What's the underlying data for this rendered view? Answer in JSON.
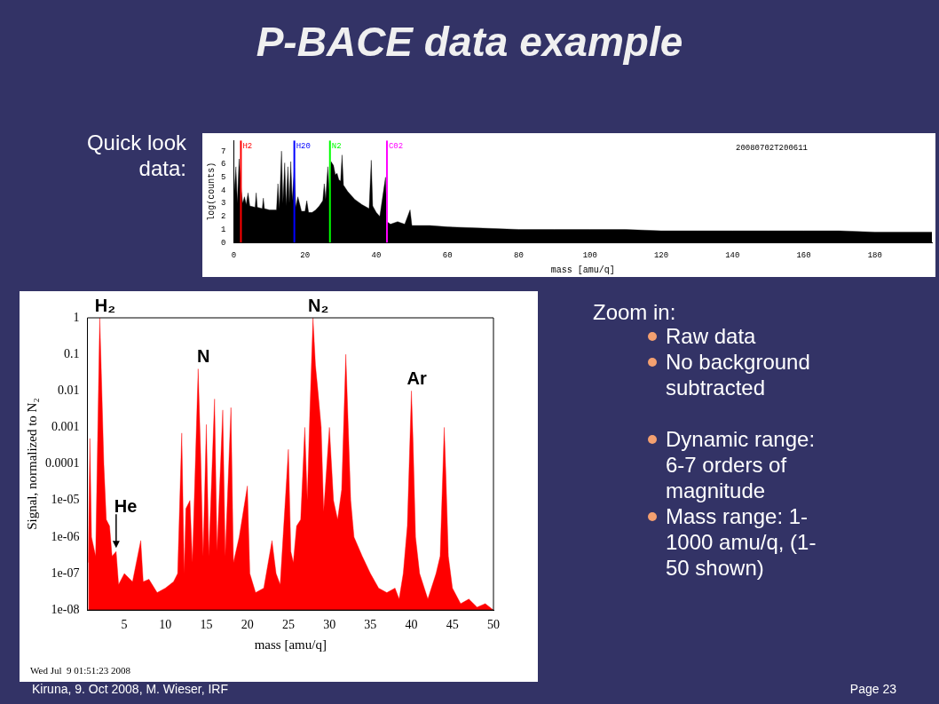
{
  "chart_data": [
    {
      "type": "area",
      "xlabel": "mass [amu/q]",
      "ylabel": "log(counts)",
      "color": "#000000",
      "xlim": [
        0,
        196
      ],
      "xticks": [
        0,
        20,
        40,
        60,
        80,
        100,
        120,
        140,
        160,
        180
      ],
      "ylim": [
        0,
        7.8
      ],
      "yticks": [
        0,
        1,
        2,
        3,
        4,
        5,
        6,
        7
      ],
      "marker": "none",
      "x": [
        0,
        0.6,
        1,
        1.5,
        2,
        2.5,
        3,
        3.5,
        4,
        4.5,
        6,
        6.3,
        6.6,
        8,
        8.3,
        8.6,
        10,
        12,
        12.4,
        12.8,
        13.4,
        13.8,
        14.3,
        14.7,
        15.2,
        15.6,
        16,
        16.4,
        17,
        17.4,
        18,
        19,
        20,
        20.5,
        21,
        22,
        23,
        24,
        25,
        25.4,
        25.8,
        26.4,
        26.8,
        27.3,
        28,
        28.5,
        29,
        29.5,
        30,
        30.4,
        30.8,
        32,
        34,
        36,
        38,
        38.6,
        39,
        40,
        41,
        42.6,
        43,
        44,
        46,
        48,
        49.5,
        50,
        55,
        60,
        70,
        80,
        90,
        100,
        110,
        120,
        130,
        140,
        150,
        160,
        170,
        180,
        190,
        196
      ],
      "values": [
        3.2,
        5.8,
        3.0,
        6.4,
        4.3,
        3.0,
        3.5,
        2.9,
        3.8,
        2.8,
        2.7,
        3.8,
        2.7,
        2.6,
        3.4,
        2.6,
        2.5,
        2.5,
        4.5,
        2.6,
        7.0,
        3.0,
        6.1,
        2.8,
        5.8,
        3.0,
        6.2,
        3.2,
        5.7,
        2.7,
        3.5,
        2.4,
        2.4,
        3.2,
        2.3,
        2.3,
        2.5,
        2.8,
        3.2,
        4.5,
        3.3,
        5.8,
        4.0,
        6.2,
        5.9,
        5.2,
        5.3,
        4.8,
        4.7,
        6.7,
        4.4,
        3.9,
        3.3,
        2.9,
        2.6,
        6.3,
        2.8,
        2.3,
        2.0,
        5.0,
        1.6,
        1.4,
        1.6,
        1.4,
        2.5,
        1.3,
        1.3,
        1.2,
        1.1,
        1.0,
        1.0,
        1.0,
        1.0,
        0.9,
        0.9,
        0.9,
        0.9,
        0.9,
        0.9,
        0.8,
        0.8,
        0.8
      ],
      "ref_lines": [
        {
          "axis": "x",
          "value": 2,
          "label": "H2",
          "color": "#ff0000"
        },
        {
          "axis": "x",
          "value": 17,
          "label": "H20",
          "color": "#0000ff"
        },
        {
          "axis": "x",
          "value": 27,
          "label": "N2",
          "color": "#00ff00"
        },
        {
          "axis": "x",
          "value": 43,
          "label": "C02",
          "color": "#ff00ff"
        }
      ],
      "annotations": [
        "20080702T200611"
      ]
    },
    {
      "type": "area",
      "xlabel": "mass [amu/q]",
      "ylabel": "Signal, normalized to N₂",
      "color": "#ff0000",
      "log": true,
      "xlim": [
        0.5,
        50
      ],
      "xticks": [
        5,
        10,
        15,
        20,
        25,
        30,
        35,
        40,
        45,
        50
      ],
      "ylim": [
        1e-08,
        1
      ],
      "yticks": [
        1,
        0.1,
        0.01,
        0.001,
        0.0001,
        {
          "value": 1e-05,
          "label": "1e-05"
        },
        {
          "value": 1e-06,
          "label": "1e-06"
        },
        {
          "value": 1e-07,
          "label": "1e-07"
        },
        {
          "value": 1e-08,
          "label": "1e-08"
        }
      ],
      "marker": "none",
      "x": [
        0.6,
        0.8,
        1,
        1.5,
        2,
        2.2,
        2.5,
        2.8,
        3.2,
        3.5,
        4,
        4.3,
        5,
        6,
        7,
        7.3,
        8,
        9,
        10,
        11,
        11.5,
        12,
        12.3,
        12.5,
        13,
        13.3,
        14,
        14.3,
        14.6,
        15,
        15.3,
        16,
        16.3,
        17,
        17.3,
        18,
        18.3,
        19,
        20,
        20.3,
        21,
        22,
        23,
        23.5,
        24,
        25,
        25.3,
        25.6,
        26,
        26.5,
        27,
        27.3,
        27.6,
        28,
        28.3,
        28.6,
        29,
        29.3,
        30,
        30.5,
        31,
        31.5,
        32,
        32.3,
        32.6,
        33,
        34,
        35,
        36,
        37,
        38,
        38.5,
        39,
        39.5,
        40,
        40.2,
        40.5,
        41,
        42,
        43,
        43.5,
        44,
        44.2,
        44.5,
        45,
        46,
        47,
        48,
        49,
        50
      ],
      "values": [
        2e-07,
        0.0005,
        1e-06,
        3e-07,
        1,
        0.03,
        0.0001,
        3e-06,
        2e-06,
        3e-07,
        4e-07,
        5e-08,
        1e-07,
        6e-08,
        8e-07,
        6e-08,
        7e-08,
        3e-08,
        4e-08,
        6e-08,
        1e-07,
        0.0007,
        1e-07,
        6e-06,
        1e-05,
        2e-07,
        0.04,
        0.0002,
        3e-07,
        0.0012,
        3e-07,
        0.006,
        4e-07,
        0.003,
        3e-07,
        0.0035,
        2e-07,
        1e-06,
        2.5e-05,
        1e-07,
        3e-08,
        4e-08,
        8e-07,
        1e-07,
        5e-08,
        0.00025,
        4e-07,
        2e-07,
        2e-06,
        3e-06,
        0.001,
        1e-05,
        0.002,
        1,
        0.05,
        0.01,
        0.001,
        5e-06,
        0.001,
        1e-05,
        3e-06,
        2e-05,
        0.1,
        0.001,
        1e-05,
        1e-06,
        3e-07,
        1e-07,
        4e-08,
        3e-08,
        4e-08,
        2e-08,
        1e-07,
        2e-06,
        0.01,
        0.0004,
        1e-06,
        1e-07,
        2e-08,
        1e-07,
        3e-07,
        0.001,
        5e-05,
        3e-07,
        4e-08,
        1.5e-08,
        2e-08,
        1.2e-08,
        1.5e-08,
        1e-08
      ],
      "annotations": [
        {
          "text": "H₂",
          "x": 2,
          "y": 1
        },
        {
          "text": "N",
          "x": 14,
          "y": 0.04
        },
        {
          "text": "N₂",
          "x": 28,
          "y": 1
        },
        {
          "text": "Ar",
          "x": 40,
          "y": 0.01
        },
        {
          "text": "He",
          "x": 4,
          "y": 4e-07
        },
        "Wed Jul  9 01:51:23 2008"
      ]
    },
    {
      "type": "other",
      "title": "P-BACE data example",
      "annotations": [
        "Quick look data:",
        "Zoom in:",
        "Raw data",
        "No background subtracted",
        "Dynamic range: 6-7 orders of magnitude",
        "Mass range: 1-1000 amu/q, (1-50 shown)",
        "Kiruna, 9. Oct  2008, M. Wieser, IRF",
        "Page 23"
      ]
    }
  ]
}
